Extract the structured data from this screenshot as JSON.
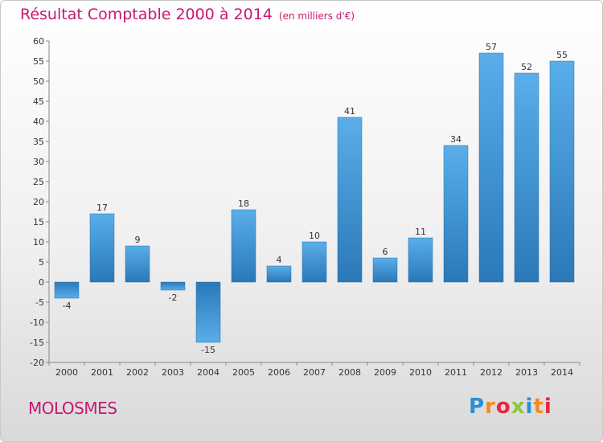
{
  "header": {
    "title": "Résultat Comptable 2000 à 2014",
    "subtitle": "(en milliers d'€)"
  },
  "footer": {
    "commune": "MOLOSMES",
    "brand": "Proxiti",
    "brand_colors": [
      "#2a8fd8",
      "#f28c1e",
      "#e8273a",
      "#8cc63f",
      "#2a8fd8",
      "#f28c1e",
      "#e8273a"
    ]
  },
  "colors": {
    "title": "#c71870",
    "bar_light": "#5aaeea",
    "bar_dark": "#2a78b8"
  },
  "chart_data": {
    "type": "bar",
    "title": "Résultat Comptable 2000 à 2014",
    "subtitle": "(en milliers d'€)",
    "xlabel": "",
    "ylabel": "",
    "ylim": [
      -20,
      60
    ],
    "ytick_step": 5,
    "grid": false,
    "categories": [
      "2000",
      "2001",
      "2002",
      "2003",
      "2004",
      "2005",
      "2006",
      "2007",
      "2008",
      "2009",
      "2010",
      "2011",
      "2012",
      "2013",
      "2014"
    ],
    "values": [
      -4,
      17,
      9,
      -2,
      -15,
      18,
      4,
      10,
      41,
      6,
      11,
      34,
      57,
      52,
      55
    ]
  }
}
